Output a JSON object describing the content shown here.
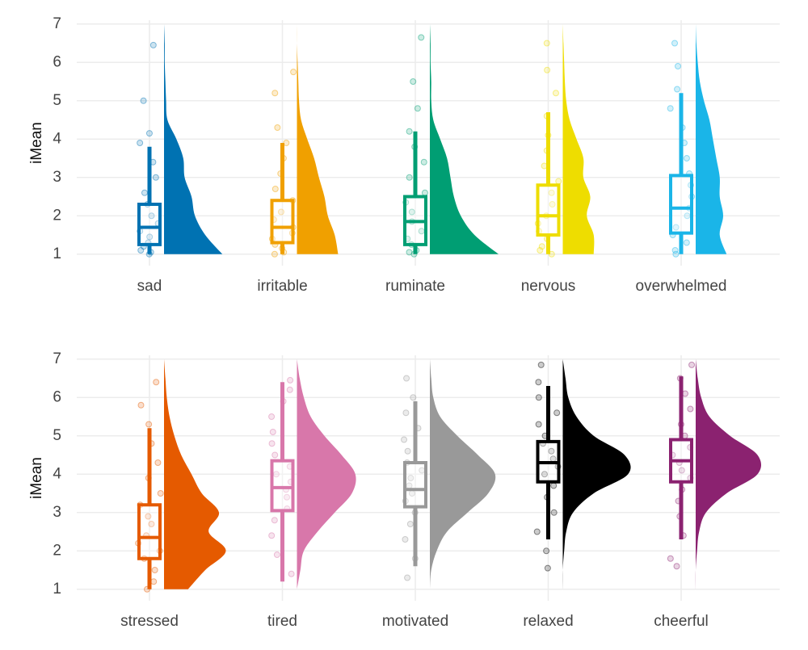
{
  "chart_data": [
    {
      "type": "raincloud",
      "y_label": "iMean",
      "ylim": [
        0.7,
        7.1
      ],
      "yticks": [
        1,
        2,
        3,
        4,
        5,
        6,
        7
      ],
      "grid": true,
      "density_y": [
        1,
        1.5,
        2,
        2.5,
        3,
        3.5,
        4,
        4.5,
        5,
        5.5,
        6,
        6.5,
        7
      ],
      "categories": [
        "sad",
        "irritable",
        "ruminate",
        "nervous",
        "overwhelmed"
      ],
      "clouds": [
        {
          "color": "#0072B2",
          "box": {
            "low": 1,
            "q1": 1.25,
            "median": 1.7,
            "q3": 2.3,
            "high": 3.8
          },
          "points": [
            1,
            1.05,
            1.1,
            1.2,
            1.3,
            1.45,
            1.6,
            1.8,
            2.0,
            2.3,
            2.6,
            3.0,
            3.4,
            3.9,
            4.15,
            5.0,
            6.45
          ],
          "density": [
            0.85,
            0.6,
            0.45,
            0.4,
            0.3,
            0.28,
            0.18,
            0.05,
            0.03,
            0.02,
            0.01,
            0.01,
            0
          ]
        },
        {
          "color": "#F0A000",
          "box": {
            "low": 1,
            "q1": 1.3,
            "median": 1.7,
            "q3": 2.4,
            "high": 3.9
          },
          "points": [
            1,
            1.05,
            1.15,
            1.25,
            1.4,
            1.55,
            1.7,
            1.9,
            2.1,
            2.4,
            2.7,
            3.1,
            3.5,
            3.9,
            4.3,
            5.2,
            5.75
          ],
          "density": [
            0.6,
            0.55,
            0.45,
            0.4,
            0.32,
            0.25,
            0.15,
            0.06,
            0.03,
            0.02,
            0.01,
            0,
            0
          ]
        },
        {
          "color": "#009E73",
          "box": {
            "low": 1,
            "q1": 1.25,
            "median": 1.85,
            "q3": 2.5,
            "high": 4.2
          },
          "points": [
            1,
            1.05,
            1.1,
            1.25,
            1.4,
            1.6,
            1.85,
            2.1,
            2.35,
            2.6,
            3.0,
            3.4,
            3.8,
            4.2,
            4.8,
            5.5,
            6.65
          ],
          "density": [
            1.0,
            0.65,
            0.45,
            0.35,
            0.3,
            0.25,
            0.15,
            0.05,
            0.02,
            0.02,
            0.01,
            0.01,
            0
          ]
        },
        {
          "color": "#EEDD00",
          "box": {
            "low": 1,
            "q1": 1.5,
            "median": 2.0,
            "q3": 2.8,
            "high": 4.7
          },
          "points": [
            1,
            1.1,
            1.2,
            1.4,
            1.6,
            1.8,
            2.0,
            2.3,
            2.6,
            2.9,
            3.3,
            3.7,
            4.1,
            4.6,
            5.2,
            5.8,
            6.5
          ],
          "density": [
            0.45,
            0.45,
            0.35,
            0.4,
            0.3,
            0.3,
            0.2,
            0.1,
            0.05,
            0.03,
            0.02,
            0.01,
            0
          ]
        },
        {
          "color": "#1AB5E8",
          "box": {
            "low": 1,
            "q1": 1.55,
            "median": 2.2,
            "q3": 3.05,
            "high": 5.2
          },
          "points": [
            1,
            1.1,
            1.3,
            1.5,
            1.7,
            2.0,
            2.2,
            2.5,
            2.8,
            3.1,
            3.5,
            3.9,
            4.3,
            4.8,
            5.3,
            5.9,
            6.5
          ],
          "density": [
            0.45,
            0.35,
            0.4,
            0.35,
            0.35,
            0.3,
            0.25,
            0.2,
            0.12,
            0.06,
            0.03,
            0.01,
            0
          ]
        }
      ]
    },
    {
      "type": "raincloud",
      "y_label": "iMean",
      "ylim": [
        0.7,
        7.1
      ],
      "yticks": [
        1,
        2,
        3,
        4,
        5,
        6,
        7
      ],
      "grid": true,
      "density_y": [
        1,
        1.5,
        2,
        2.5,
        3,
        3.5,
        4,
        4.5,
        5,
        5.5,
        6,
        6.5,
        7
      ],
      "categories": [
        "stressed",
        "tired",
        "motivated",
        "relaxed",
        "cheerful"
      ],
      "clouds": [
        {
          "color": "#E55A00",
          "box": {
            "low": 1,
            "q1": 1.8,
            "median": 2.35,
            "q3": 3.2,
            "high": 5.2
          },
          "points": [
            1,
            1.2,
            1.5,
            1.8,
            2.0,
            2.2,
            2.4,
            2.7,
            2.9,
            3.2,
            3.5,
            3.9,
            4.3,
            4.8,
            5.3,
            5.8,
            6.4
          ],
          "density": [
            0.35,
            0.6,
            0.9,
            0.65,
            0.8,
            0.55,
            0.4,
            0.25,
            0.15,
            0.08,
            0.04,
            0.02,
            0
          ]
        },
        {
          "color": "#D877AA",
          "box": {
            "low": 1.2,
            "q1": 3.05,
            "median": 3.65,
            "q3": 4.35,
            "high": 6.4
          },
          "points": [
            1.4,
            1.9,
            2.4,
            2.8,
            3.1,
            3.4,
            3.6,
            3.8,
            4.0,
            4.2,
            4.5,
            4.8,
            5.1,
            5.5,
            5.9,
            6.2,
            6.45
          ],
          "density": [
            0,
            0.05,
            0.1,
            0.3,
            0.55,
            0.8,
            0.85,
            0.65,
            0.4,
            0.2,
            0.1,
            0.04,
            0
          ]
        },
        {
          "color": "#999999",
          "box": {
            "low": 1.6,
            "q1": 3.15,
            "median": 3.6,
            "q3": 4.3,
            "high": 5.9
          },
          "points": [
            1.3,
            1.8,
            2.3,
            2.7,
            3.0,
            3.3,
            3.5,
            3.7,
            3.9,
            4.1,
            4.3,
            4.6,
            4.9,
            5.2,
            5.6,
            6.0,
            6.5
          ],
          "density": [
            0,
            0.02,
            0.1,
            0.25,
            0.55,
            0.85,
            0.95,
            0.7,
            0.4,
            0.15,
            0.05,
            0.02,
            0
          ]
        },
        {
          "color": "#000000",
          "box": {
            "low": 2.3,
            "q1": 3.8,
            "median": 4.3,
            "q3": 4.85,
            "high": 6.3
          },
          "points": [
            1.55,
            2.0,
            2.5,
            3.0,
            3.4,
            3.7,
            4.0,
            4.2,
            4.4,
            4.6,
            4.8,
            5.0,
            5.3,
            5.6,
            6.0,
            6.4,
            6.85
          ],
          "density": [
            0,
            0,
            0.02,
            0.05,
            0.15,
            0.45,
            0.95,
            0.9,
            0.45,
            0.2,
            0.08,
            0.04,
            0
          ]
        },
        {
          "color": "#8B2270",
          "box": {
            "low": 2.3,
            "q1": 3.8,
            "median": 4.35,
            "q3": 4.9,
            "high": 6.55
          },
          "points": [
            1.6,
            1.8,
            2.4,
            2.9,
            3.3,
            3.6,
            3.9,
            4.1,
            4.3,
            4.5,
            4.7,
            5.0,
            5.3,
            5.7,
            6.1,
            6.5,
            6.85
          ],
          "density": [
            0,
            0,
            0.02,
            0.05,
            0.15,
            0.45,
            0.9,
            0.9,
            0.5,
            0.2,
            0.08,
            0.03,
            0
          ]
        }
      ]
    }
  ]
}
